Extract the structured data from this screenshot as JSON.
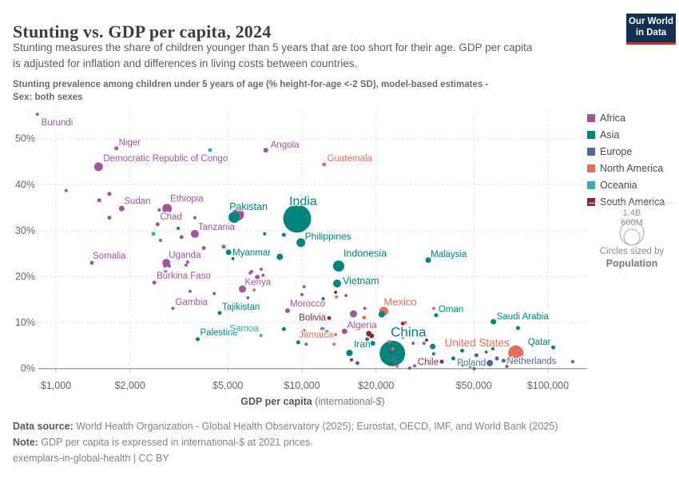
{
  "header": {
    "title": "Stunting vs. GDP per capita, 2024",
    "subtitle": [
      "Stunting measures the share of children younger than 5 years that are too short for their age. GDP per capita",
      "is adjusted for inflation and differences in living costs between countries."
    ],
    "variable_note": [
      "Stunting prevalence among children under 5 years of age (% height-for-age <-2 SD), model-based estimates -",
      "Sex: both sexes"
    ]
  },
  "logo": {
    "line1": "Our World",
    "line2": "in Data"
  },
  "legend": {
    "items": [
      {
        "label": "Africa",
        "color": "#a2559c"
      },
      {
        "label": "Asia",
        "color": "#00847e"
      },
      {
        "label": "Europe",
        "color": "#4c6a9c"
      },
      {
        "label": "North America",
        "color": "#e56e5a"
      },
      {
        "label": "Oceania",
        "color": "#38aaba"
      },
      {
        "label": "South America",
        "color": "#883039"
      }
    ]
  },
  "size_legend": {
    "big_label": "1.4B",
    "small_label": "600M",
    "caption_line1": "Circles sized by",
    "caption_line2": "Population"
  },
  "footer": {
    "source_label": "Data source:",
    "source_text": " World Health Organization - Global Health Observatory (2025); Eurostat, OECD, IMF, and World Bank (2025)",
    "note_label": "Note:",
    "note_text": " GDP per capita is expressed in international-$ at 2021 prices.",
    "license": "exemplars-in-global-health | CC BY"
  },
  "chart_data": {
    "type": "scatter",
    "title": "Stunting vs. GDP per capita, 2024",
    "x_scale": "log",
    "xlabel_bold": "GDP per capita",
    "xlabel_rest": " (international-$)",
    "ylabel": "Stunting prevalence among children under 5 (%)",
    "x_ticks": [
      {
        "value": 1000,
        "label": "$1,000"
      },
      {
        "value": 2000,
        "label": "$2,000"
      },
      {
        "value": 5000,
        "label": "$5,000"
      },
      {
        "value": 10000,
        "label": "$10,000"
      },
      {
        "value": 20000,
        "label": "$20,000"
      },
      {
        "value": 50000,
        "label": "$50,000"
      },
      {
        "value": 100000,
        "label": "$100,000"
      }
    ],
    "y_ticks": [
      {
        "value": 0,
        "label": "0%"
      },
      {
        "value": 10,
        "label": "10%"
      },
      {
        "value": 20,
        "label": "20%"
      },
      {
        "value": 30,
        "label": "30%"
      },
      {
        "value": 40,
        "label": "40%"
      },
      {
        "value": 50,
        "label": "50%"
      }
    ],
    "points": [
      {
        "n": "Burundi",
        "c": "Africa",
        "g": 840,
        "s": 55.3,
        "r": 2,
        "lx": 5,
        "ly": 14,
        "la": "start"
      },
      {
        "n": "Niger",
        "c": "Africa",
        "g": 1760,
        "s": 47.9,
        "r": 2.5,
        "lx": 3,
        "ly": -4,
        "la": "start"
      },
      {
        "n": "Democratic Republic of Congo",
        "c": "Africa",
        "g": 1490,
        "s": 43.9,
        "r": 5.5,
        "lx": 6,
        "ly": -7,
        "la": "start"
      },
      {
        "n": "Angola",
        "c": "Africa",
        "g": 7130,
        "s": 47.5,
        "r": 3,
        "lx": 6,
        "ly": -3,
        "la": "start"
      },
      {
        "n": "Sudan",
        "c": "Africa",
        "g": 1850,
        "s": 34.8,
        "r": 3.5,
        "lx": 3,
        "ly": -6,
        "la": "start"
      },
      {
        "n": "Ethiopia",
        "c": "Africa",
        "g": 2830,
        "s": 34.8,
        "r": 6,
        "lx": 4,
        "ly": -9,
        "la": "start"
      },
      {
        "n": "Chad",
        "c": "Africa",
        "g": 2590,
        "s": 31.4,
        "r": 2.5,
        "lx": 3,
        "ly": -6,
        "la": "start"
      },
      {
        "n": "Tanzania",
        "c": "Africa",
        "g": 3670,
        "s": 29.3,
        "r": 5,
        "lx": 4,
        "ly": -5,
        "la": "start"
      },
      {
        "n": "Pakistan",
        "c": "Asia",
        "g": 5300,
        "s": 32.9,
        "r": 7,
        "lx": -6,
        "ly": -9,
        "la": "start",
        "ls": 12.5
      },
      {
        "n": "India",
        "c": "Asia",
        "g": 9560,
        "s": 32.6,
        "r": 17.5,
        "lx": -10,
        "ly": -17,
        "la": "start",
        "ls": 16
      },
      {
        "n": "Philippines",
        "c": "Asia",
        "g": 9900,
        "s": 27.4,
        "r": 5.5,
        "lx": 5,
        "ly": -4,
        "la": "start",
        "ls": 12
      },
      {
        "n": "Guatemala",
        "c": "North America",
        "g": 12300,
        "s": 44.4,
        "r": 2.5,
        "lx": 4,
        "ly": -4,
        "la": "start"
      },
      {
        "n": "Somalia",
        "c": "Africa",
        "g": 1400,
        "s": 23.0,
        "r": 2.5,
        "lx": 1,
        "ly": -5,
        "la": "start"
      },
      {
        "n": "Uganda",
        "c": "Africa",
        "g": 2810,
        "s": 23.0,
        "r": 5,
        "lx": 3,
        "ly": -6,
        "la": "start"
      },
      {
        "n": "Burkina Faso",
        "c": "Africa",
        "g": 2510,
        "s": 18.7,
        "r": 2.5,
        "lx": 3,
        "ly": -5,
        "la": "start"
      },
      {
        "n": "Myanmar",
        "c": "Asia",
        "g": 5030,
        "s": 25.3,
        "r": 3.5,
        "lx": 5,
        "ly": 4,
        "la": "start"
      },
      {
        "n": "Kenya",
        "c": "Africa",
        "g": 5730,
        "s": 17.3,
        "r": 4.5,
        "lx": 3,
        "ly": -5,
        "la": "start"
      },
      {
        "n": "Gambia",
        "c": "Africa",
        "g": 2990,
        "s": 13.1,
        "r": 2,
        "lx": 3,
        "ly": -4,
        "la": "start"
      },
      {
        "n": "Tajikistan",
        "c": "Asia",
        "g": 4630,
        "s": 12.1,
        "r": 2.5,
        "lx": 3,
        "ly": -4,
        "la": "start"
      },
      {
        "n": "Palestine",
        "c": "Asia",
        "g": 3770,
        "s": 6.4,
        "r": 2.5,
        "lx": 3,
        "ly": -5,
        "la": "start"
      },
      {
        "n": "Samoa",
        "c": "Oceania",
        "g": 6810,
        "s": 7.2,
        "r": 2,
        "lx": -3,
        "ly": -5,
        "la": "end"
      },
      {
        "n": "Morocco",
        "c": "Africa",
        "g": 8740,
        "s": 12.6,
        "r": 3,
        "lx": 3,
        "ly": -5,
        "la": "start"
      },
      {
        "n": "Bolivia",
        "c": "South America",
        "g": 12900,
        "s": 11.0,
        "r": 2.5,
        "lx": -4,
        "ly": 3,
        "la": "end"
      },
      {
        "n": "Jamaica",
        "c": "North America",
        "g": 13700,
        "s": 7.4,
        "r": 2,
        "lx": -3,
        "ly": 4,
        "la": "end"
      },
      {
        "n": "Indonesia",
        "c": "Asia",
        "g": 14100,
        "s": 22.3,
        "r": 7,
        "lx": 6,
        "ly": -12,
        "la": "start",
        "ls": 12.5
      },
      {
        "n": "Vietnam",
        "c": "Asia",
        "g": 13900,
        "s": 18.5,
        "r": 5,
        "lx": 7,
        "ly": 1,
        "la": "start",
        "ls": 12.5
      },
      {
        "n": "Malaysia",
        "c": "Asia",
        "g": 32600,
        "s": 23.6,
        "r": 3.5,
        "lx": 3,
        "ly": -4,
        "la": "start"
      },
      {
        "n": "Mexico",
        "c": "North America",
        "g": 21500,
        "s": 12.5,
        "r": 5.5,
        "lx": 0,
        "ly": -7,
        "la": "start",
        "ls": 13
      },
      {
        "n": "Oman",
        "c": "Asia",
        "g": 35100,
        "s": 11.6,
        "r": 2.5,
        "lx": 3,
        "ly": -4,
        "la": "start"
      },
      {
        "n": "Algeria",
        "c": "Africa",
        "g": 14900,
        "s": 8.1,
        "r": 3.5,
        "lx": 3,
        "ly": -4,
        "la": "start",
        "ls": 12
      },
      {
        "n": "Iran",
        "c": "Asia",
        "g": 19400,
        "s": 5.5,
        "r": 3,
        "lx": -3,
        "ly": 5,
        "la": "end",
        "ls": 12
      },
      {
        "n": "China",
        "c": "Asia",
        "g": 23300,
        "s": 3.3,
        "r": 16,
        "lx": -2,
        "ly": -21,
        "la": "start",
        "ls": 17
      },
      {
        "n": "United States",
        "c": "North America",
        "g": 74000,
        "s": 3.4,
        "r": 9.5,
        "lx": -8,
        "ly": -8,
        "la": "end",
        "ls": 13.5
      },
      {
        "n": "Chile",
        "c": "South America",
        "g": 37000,
        "s": 1.5,
        "r": 2.5,
        "lx": -4,
        "ly": 4,
        "la": "end"
      },
      {
        "n": "Poland",
        "c": "Europe",
        "g": 58000,
        "s": 1.2,
        "r": 4,
        "lx": -5,
        "ly": 3,
        "la": "end"
      },
      {
        "n": "Netherlands",
        "c": "Europe",
        "g": 66000,
        "s": 1.7,
        "r": 2.5,
        "lx": 4,
        "ly": 4,
        "la": "start"
      },
      {
        "n": "Qatar",
        "c": "Asia",
        "g": 105000,
        "s": 4.6,
        "r": 2.5,
        "lx": -3,
        "ly": -3,
        "la": "end"
      },
      {
        "n": "Saudi Arabia",
        "c": "Asia",
        "g": 60000,
        "s": 10.2,
        "r": 3.5,
        "lx": 4,
        "ly": -3,
        "la": "start"
      },
      {
        "c": "Africa",
        "g": 5500,
        "s": 33.5,
        "r": 7.5
      },
      {
        "c": "Africa",
        "g": 1100,
        "s": 38.7,
        "r": 2
      },
      {
        "c": "Africa",
        "g": 1500,
        "s": 36.6,
        "r": 2.5
      },
      {
        "c": "Africa",
        "g": 1650,
        "s": 38.0,
        "r": 2.5
      },
      {
        "c": "Africa",
        "g": 1650,
        "s": 32.8,
        "r": 2.5
      },
      {
        "c": "Africa",
        "g": 2630,
        "s": 34.5,
        "r": 2
      },
      {
        "c": "Asia",
        "g": 3140,
        "s": 30.5,
        "r": 2
      },
      {
        "c": "Africa",
        "g": 3670,
        "s": 32.8,
        "r": 2
      },
      {
        "c": "Oceania",
        "g": 2490,
        "s": 29.3,
        "r": 2.5
      },
      {
        "c": "Africa",
        "g": 2660,
        "s": 27.9,
        "r": 2
      },
      {
        "c": "Africa",
        "g": 3240,
        "s": 28.6,
        "r": 2.5
      },
      {
        "c": "Oceania",
        "g": 4230,
        "s": 47.5,
        "r": 2.5
      },
      {
        "c": "Africa",
        "g": 3990,
        "s": 26.2,
        "r": 2.5
      },
      {
        "c": "Africa",
        "g": 4810,
        "s": 26.5,
        "r": 2.5
      },
      {
        "c": "Asia",
        "g": 7050,
        "s": 29.3,
        "r": 2
      },
      {
        "c": "Asia",
        "g": 8440,
        "s": 29.1,
        "r": 2.5
      },
      {
        "c": "Asia",
        "g": 8130,
        "s": 24.3,
        "r": 4
      },
      {
        "c": "Asia",
        "g": 5240,
        "s": 23.9,
        "r": 2
      },
      {
        "c": "Africa",
        "g": 3430,
        "s": 23.2,
        "r": 2
      },
      {
        "c": "Africa",
        "g": 2770,
        "s": 22.3,
        "r": 2
      },
      {
        "c": "Africa",
        "g": 2890,
        "s": 22.3,
        "r": 2
      },
      {
        "c": "Africa",
        "g": 3380,
        "s": 22.5,
        "r": 2
      },
      {
        "c": "North America",
        "g": 2790,
        "s": 21.1,
        "r": 2
      },
      {
        "c": "Africa",
        "g": 6240,
        "s": 21.1,
        "r": 2
      },
      {
        "c": "Africa",
        "g": 6830,
        "s": 21.6,
        "r": 2
      },
      {
        "c": "Africa",
        "g": 6590,
        "s": 19.9,
        "r": 3
      },
      {
        "c": "Africa",
        "g": 6950,
        "s": 20.3,
        "r": 2
      },
      {
        "c": "Africa",
        "g": 6160,
        "s": 20.8,
        "r": 2
      },
      {
        "c": "North America",
        "g": 6390,
        "s": 17.1,
        "r": 2
      },
      {
        "c": "Africa",
        "g": 6030,
        "s": 15.4,
        "r": 2
      },
      {
        "c": "Africa",
        "g": 3510,
        "s": 16.8,
        "r": 2
      },
      {
        "c": "Africa",
        "g": 4400,
        "s": 16.3,
        "r": 2
      },
      {
        "c": "Asia",
        "g": 5310,
        "s": 9.3,
        "r": 2
      },
      {
        "c": "Africa",
        "g": 10200,
        "s": 17.8,
        "r": 2
      },
      {
        "c": "Africa",
        "g": 10000,
        "s": 16.1,
        "r": 2
      },
      {
        "c": "Asia",
        "g": 12200,
        "s": 15.2,
        "r": 2
      },
      {
        "c": "South America",
        "g": 13700,
        "s": 16.6,
        "r": 2
      },
      {
        "c": "Africa",
        "g": 15100,
        "s": 15.9,
        "r": 2
      },
      {
        "c": "Africa",
        "g": 16200,
        "s": 11.9,
        "r": 4.5
      },
      {
        "c": "Africa",
        "g": 18000,
        "s": 13.1,
        "r": 2
      },
      {
        "c": "North America",
        "g": 17900,
        "s": 11.1,
        "r": 2.5
      },
      {
        "c": "North America",
        "g": 13800,
        "s": 15.6,
        "r": 2
      },
      {
        "c": "Asia",
        "g": 8440,
        "s": 8.6,
        "r": 2.5
      },
      {
        "c": "Asia",
        "g": 9660,
        "s": 5.7,
        "r": 2.5
      },
      {
        "c": "Africa",
        "g": 10400,
        "s": 5.3,
        "r": 2
      },
      {
        "c": "Africa",
        "g": 12100,
        "s": 8.6,
        "r": 2.5
      },
      {
        "c": "Asia",
        "g": 12600,
        "s": 7.9,
        "r": 2.5
      },
      {
        "c": "North America",
        "g": 13500,
        "s": 5.3,
        "r": 2
      },
      {
        "c": "North America",
        "g": 10200,
        "s": 8.3,
        "r": 2
      },
      {
        "c": "Europe",
        "g": 18400,
        "s": 6.4,
        "r": 2.5
      },
      {
        "c": "South America",
        "g": 18700,
        "s": 7.6,
        "r": 3.5
      },
      {
        "c": "South America",
        "g": 19200,
        "s": 7.1,
        "r": 3
      },
      {
        "c": "South America",
        "g": 19400,
        "s": 9.2,
        "r": 2
      },
      {
        "c": "Asia",
        "g": 15600,
        "s": 3.4,
        "r": 4
      },
      {
        "c": "South America",
        "g": 15900,
        "s": 1.9,
        "r": 2
      },
      {
        "c": "Europe",
        "g": 16800,
        "s": 1.2,
        "r": 2.5
      },
      {
        "c": "Asia",
        "g": 21100,
        "s": 11.8,
        "r": 4
      },
      {
        "c": "North America",
        "g": 23400,
        "s": 4.3,
        "r": 2
      },
      {
        "c": "North America",
        "g": 22600,
        "s": 5.9,
        "r": 2
      },
      {
        "c": "Europe",
        "g": 23700,
        "s": 2.4,
        "r": 2
      },
      {
        "c": "North America",
        "g": 24400,
        "s": 0.5,
        "r": 2
      },
      {
        "c": "Europe",
        "g": 24200,
        "s": 1.5,
        "r": 2
      },
      {
        "c": "South America",
        "g": 25700,
        "s": 9.8,
        "r": 2.5
      },
      {
        "c": "North America",
        "g": 26300,
        "s": 10.0,
        "r": 2
      },
      {
        "c": "Africa",
        "g": 28300,
        "s": 5.5,
        "r": 2
      },
      {
        "c": "Africa",
        "g": 31300,
        "s": 5.5,
        "r": 2
      },
      {
        "c": "South America",
        "g": 32100,
        "s": 6.2,
        "r": 2
      },
      {
        "c": "Asia",
        "g": 34000,
        "s": 4.8,
        "r": 3.5
      },
      {
        "c": "Asia",
        "g": 34300,
        "s": 3.2,
        "r": 2
      },
      {
        "c": "Africa",
        "g": 28700,
        "s": 0.6,
        "r": 2
      },
      {
        "c": "Europe",
        "g": 27400,
        "s": 0.1,
        "r": 2
      },
      {
        "c": "North America",
        "g": 34300,
        "s": 13.1,
        "r": 2
      },
      {
        "c": "Asia",
        "g": 41200,
        "s": 2.2,
        "r": 2.5
      },
      {
        "c": "Asia",
        "g": 44800,
        "s": 3.9,
        "r": 2.5
      },
      {
        "c": "Europe",
        "g": 51200,
        "s": 2.9,
        "r": 2.5
      },
      {
        "c": "Europe",
        "g": 56100,
        "s": 3.6,
        "r": 2
      },
      {
        "c": "Asia",
        "g": 59700,
        "s": 4.3,
        "r": 2
      },
      {
        "c": "Europe",
        "g": 45100,
        "s": 0.8,
        "r": 2
      },
      {
        "c": "Europe",
        "g": 48200,
        "s": 0.5,
        "r": 2
      },
      {
        "c": "Europe",
        "g": 50100,
        "s": 0.0,
        "r": 2
      },
      {
        "c": "Europe",
        "g": 62000,
        "s": 2.2,
        "r": 2.5
      },
      {
        "c": "Europe",
        "g": 68000,
        "s": 0.5,
        "r": 2
      },
      {
        "c": "Asia",
        "g": 75500,
        "s": 8.8,
        "r": 2.5
      },
      {
        "c": "Europe",
        "g": 126000,
        "s": 1.5,
        "r": 2
      },
      {
        "c": "Africa",
        "g": 25700,
        "s": 6.7,
        "r": 1.5
      },
      {
        "c": "South America",
        "g": 23000,
        "s": 3.4,
        "r": 1.5
      },
      {
        "c": "Europe",
        "g": 23500,
        "s": 1.9,
        "r": 1.5
      },
      {
        "c": "South America",
        "g": 23000,
        "s": 1.0,
        "r": 1.5
      }
    ]
  }
}
